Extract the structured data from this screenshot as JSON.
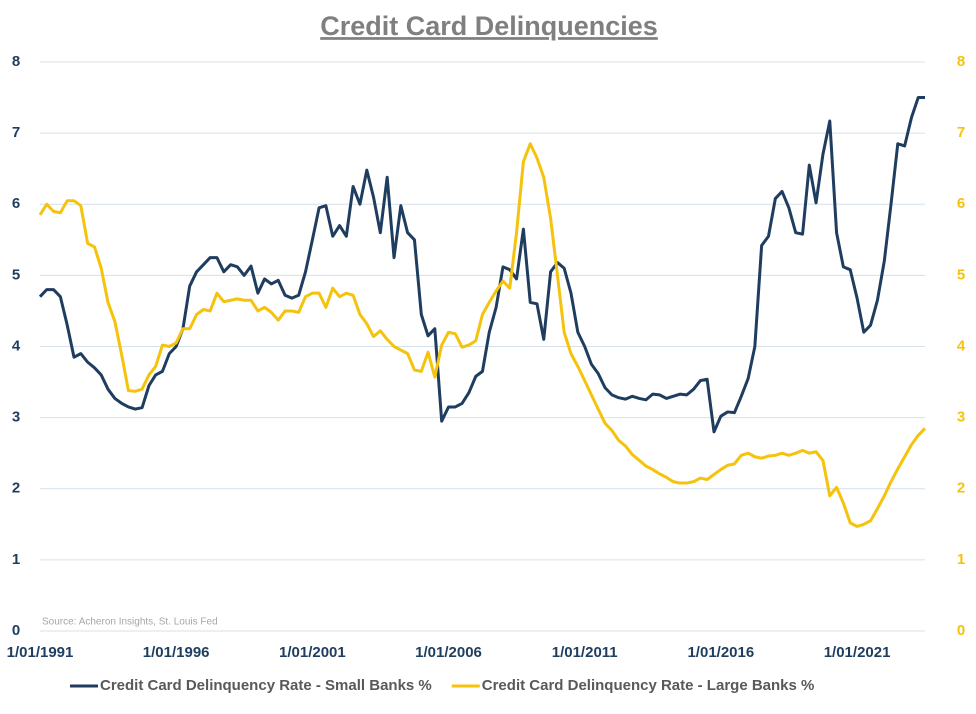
{
  "chart_data": {
    "type": "line",
    "title": "Credit Card Delinquencies",
    "annotation": "Source: Acheron Insights, St. Louis Fed",
    "x": [
      "1991-01-01",
      "1991-04-01",
      "1991-07-01",
      "1991-10-01",
      "1992-01-01",
      "1992-04-01",
      "1992-07-01",
      "1992-10-01",
      "1993-01-01",
      "1993-04-01",
      "1993-07-01",
      "1993-10-01",
      "1994-01-01",
      "1994-04-01",
      "1994-07-01",
      "1994-10-01",
      "1995-01-01",
      "1995-04-01",
      "1995-07-01",
      "1995-10-01",
      "1996-01-01",
      "1996-04-01",
      "1996-07-01",
      "1996-10-01",
      "1997-01-01",
      "1997-04-01",
      "1997-07-01",
      "1997-10-01",
      "1998-01-01",
      "1998-04-01",
      "1998-07-01",
      "1998-10-01",
      "1999-01-01",
      "1999-04-01",
      "1999-07-01",
      "1999-10-01",
      "2000-01-01",
      "2000-04-01",
      "2000-07-01",
      "2000-10-01",
      "2001-01-01",
      "2001-04-01",
      "2001-07-01",
      "2001-10-01",
      "2002-01-01",
      "2002-04-01",
      "2002-07-01",
      "2002-10-01",
      "2003-01-01",
      "2003-04-01",
      "2003-07-01",
      "2003-10-01",
      "2004-01-01",
      "2004-04-01",
      "2004-07-01",
      "2004-10-01",
      "2005-01-01",
      "2005-04-01",
      "2005-07-01",
      "2005-10-01",
      "2006-01-01",
      "2006-04-01",
      "2006-07-01",
      "2006-10-01",
      "2007-01-01",
      "2007-04-01",
      "2007-07-01",
      "2007-10-01",
      "2008-01-01",
      "2008-04-01",
      "2008-07-01",
      "2008-10-01",
      "2009-01-01",
      "2009-04-01",
      "2009-07-01",
      "2009-10-01",
      "2010-01-01",
      "2010-04-01",
      "2010-07-01",
      "2010-10-01",
      "2011-01-01",
      "2011-04-01",
      "2011-07-01",
      "2011-10-01",
      "2012-01-01",
      "2012-04-01",
      "2012-07-01",
      "2012-10-01",
      "2013-01-01",
      "2013-04-01",
      "2013-07-01",
      "2013-10-01",
      "2014-01-01",
      "2014-04-01",
      "2014-07-01",
      "2014-10-01",
      "2015-01-01",
      "2015-04-01",
      "2015-07-01",
      "2015-10-01",
      "2016-01-01",
      "2016-04-01",
      "2016-07-01",
      "2016-10-01",
      "2017-01-01",
      "2017-04-01",
      "2017-07-01",
      "2017-10-01",
      "2018-01-01",
      "2018-04-01",
      "2018-07-01",
      "2018-10-01",
      "2019-01-01",
      "2019-04-01",
      "2019-07-01",
      "2019-10-01",
      "2020-01-01",
      "2020-04-01",
      "2020-07-01",
      "2020-10-01",
      "2021-01-01",
      "2021-04-01",
      "2021-07-01",
      "2021-10-01",
      "2022-01-01",
      "2022-04-01",
      "2022-07-01",
      "2022-10-01",
      "2023-01-01",
      "2023-04-01",
      "2023-07-01"
    ],
    "series": [
      {
        "name": "Credit Card Delinquency Rate - Small Banks %",
        "color": "#1f3d5f",
        "values": [
          4.7,
          4.8,
          4.8,
          4.7,
          4.3,
          3.85,
          3.9,
          3.78,
          3.7,
          3.6,
          3.4,
          3.27,
          3.2,
          3.15,
          3.12,
          3.14,
          3.45,
          3.6,
          3.65,
          3.9,
          4.0,
          4.25,
          4.85,
          5.05,
          5.15,
          5.25,
          5.25,
          5.05,
          5.15,
          5.12,
          5.0,
          5.13,
          4.75,
          4.95,
          4.88,
          4.93,
          4.72,
          4.68,
          4.72,
          5.05,
          5.5,
          5.95,
          5.98,
          5.55,
          5.7,
          5.55,
          6.25,
          6.0,
          6.48,
          6.1,
          5.6,
          6.38,
          5.25,
          5.98,
          5.6,
          5.5,
          4.45,
          4.15,
          4.25,
          2.95,
          3.15,
          3.15,
          3.2,
          3.35,
          3.58,
          3.65,
          4.2,
          4.55,
          5.12,
          5.08,
          4.95,
          5.65,
          4.62,
          4.6,
          4.1,
          5.05,
          5.18,
          5.1,
          4.75,
          4.2,
          4.0,
          3.75,
          3.62,
          3.42,
          3.32,
          3.28,
          3.26,
          3.3,
          3.27,
          3.25,
          3.33,
          3.32,
          3.27,
          3.3,
          3.33,
          3.32,
          3.4,
          3.52,
          3.54,
          2.8,
          3.02,
          3.08,
          3.07,
          3.3,
          3.55,
          4.0,
          5.42,
          5.55,
          6.08,
          6.18,
          5.95,
          5.6,
          5.58,
          6.55,
          6.02,
          6.7,
          7.17,
          5.6,
          5.12,
          5.08,
          4.68,
          4.2,
          4.3,
          4.65,
          5.2,
          6.0,
          6.85,
          6.82,
          7.22,
          7.5,
          7.5
        ]
      },
      {
        "name": "Credit Card Delinquency Rate - Large Banks %",
        "color": "#f5c20c",
        "axis": "y2",
        "values": [
          5.85,
          6.0,
          5.9,
          5.88,
          6.05,
          6.05,
          5.98,
          5.45,
          5.4,
          5.1,
          4.62,
          4.35,
          3.88,
          3.38,
          3.37,
          3.4,
          3.6,
          3.72,
          4.02,
          4.0,
          4.05,
          4.25,
          4.25,
          4.45,
          4.52,
          4.5,
          4.75,
          4.63,
          4.65,
          4.67,
          4.65,
          4.65,
          4.5,
          4.55,
          4.48,
          4.37,
          4.5,
          4.5,
          4.48,
          4.7,
          4.75,
          4.75,
          4.55,
          4.82,
          4.7,
          4.75,
          4.72,
          4.45,
          4.32,
          4.14,
          4.22,
          4.1,
          4.0,
          3.95,
          3.9,
          3.67,
          3.65,
          3.92,
          3.57,
          4.02,
          4.2,
          4.18,
          3.99,
          4.02,
          4.08,
          4.45,
          4.62,
          4.78,
          4.92,
          4.82,
          5.6,
          6.6,
          6.85,
          6.65,
          6.38,
          5.8,
          5.0,
          4.2,
          3.9,
          3.72,
          3.52,
          3.32,
          3.12,
          2.92,
          2.82,
          2.68,
          2.6,
          2.48,
          2.4,
          2.32,
          2.27,
          2.21,
          2.16,
          2.1,
          2.08,
          2.08,
          2.1,
          2.15,
          2.13,
          2.2,
          2.27,
          2.33,
          2.35,
          2.47,
          2.5,
          2.45,
          2.43,
          2.46,
          2.47,
          2.5,
          2.47,
          2.5,
          2.54,
          2.5,
          2.52,
          2.4,
          1.9,
          2.02,
          1.8,
          1.52,
          1.47,
          1.5,
          1.55,
          1.72,
          1.9,
          2.1,
          2.28,
          2.45,
          2.62,
          2.75,
          2.85
        ]
      }
    ],
    "xlim": [
      "1991-01-01",
      "2023-07-01"
    ],
    "xticks": [
      {
        "value": "1991-01-01",
        "label": "1/01/1991"
      },
      {
        "value": "1996-01-01",
        "label": "1/01/1996"
      },
      {
        "value": "2001-01-01",
        "label": "1/01/2001"
      },
      {
        "value": "2006-01-01",
        "label": "1/01/2006"
      },
      {
        "value": "2011-01-01",
        "label": "1/01/2011"
      },
      {
        "value": "2016-01-01",
        "label": "1/01/2016"
      },
      {
        "value": "2021-01-01",
        "label": "1/01/2021"
      }
    ],
    "ylim": [
      0,
      8
    ],
    "yticks": [
      0,
      1,
      2,
      3,
      4,
      5,
      6,
      7,
      8
    ],
    "y2lim": [
      0,
      8
    ],
    "y2ticks": [
      0,
      1,
      2,
      3,
      4,
      5,
      6,
      7,
      8
    ],
    "grid": true,
    "legend": "bottom"
  }
}
